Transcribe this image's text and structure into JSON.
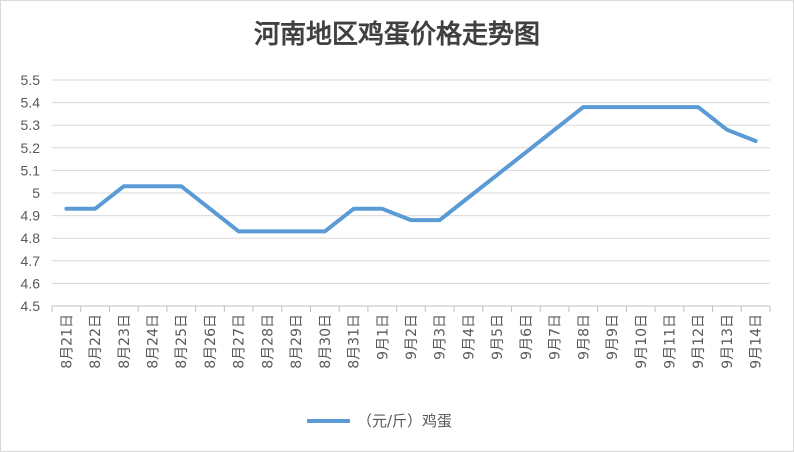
{
  "chart_data": {
    "type": "line",
    "title": "河南地区鸡蛋价格走势图",
    "xlabel": "",
    "ylabel": "",
    "categories": [
      "8月21日",
      "8月22日",
      "8月23日",
      "8月24日",
      "8月25日",
      "8月26日",
      "8月27日",
      "8月28日",
      "8月29日",
      "8月30日",
      "8月31日",
      "9月1日",
      "9月2日",
      "9月3日",
      "9月4日",
      "9月5日",
      "9月6日",
      "9月7日",
      "9月8日",
      "9月9日",
      "9月10日",
      "9月11日",
      "9月12日",
      "9月13日",
      "9月14日"
    ],
    "series": [
      {
        "name": "（元/斤）鸡蛋",
        "color": "#5b9bd5",
        "values": [
          4.93,
          4.93,
          5.03,
          5.03,
          5.03,
          4.93,
          4.83,
          4.83,
          4.83,
          4.83,
          4.93,
          4.93,
          4.88,
          4.88,
          4.98,
          5.08,
          5.18,
          5.28,
          5.38,
          5.38,
          5.38,
          5.38,
          5.38,
          5.28,
          5.23
        ]
      }
    ],
    "ylim": [
      4.5,
      5.5
    ],
    "yticks": [
      "4.5",
      "4.6",
      "4.7",
      "4.8",
      "4.9",
      "5",
      "5.1",
      "5.2",
      "5.3",
      "5.4",
      "5.5"
    ],
    "grid": true,
    "legend_position": "bottom"
  }
}
